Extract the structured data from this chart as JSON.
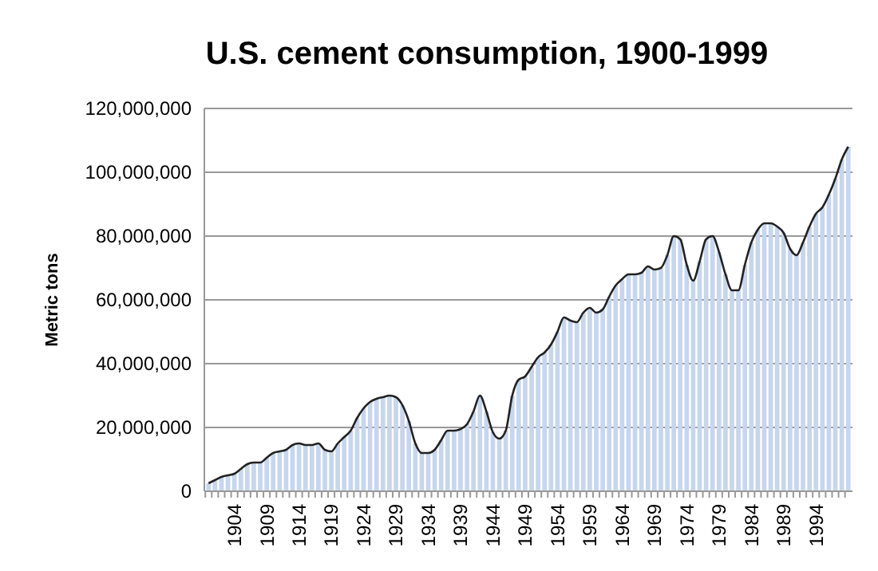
{
  "chart_data": {
    "type": "bar",
    "title": "U.S. cement consumption, 1900-1999",
    "ylabel": "Metric tons",
    "categories": [
      null,
      null,
      null,
      null,
      "1904",
      null,
      null,
      null,
      null,
      "1909",
      null,
      null,
      null,
      null,
      "1914",
      null,
      null,
      null,
      null,
      "1919",
      null,
      null,
      null,
      null,
      "1924",
      null,
      null,
      null,
      null,
      "1929",
      null,
      null,
      null,
      null,
      "1934",
      null,
      null,
      null,
      null,
      "1939",
      null,
      null,
      null,
      null,
      "1944",
      null,
      null,
      null,
      null,
      "1949",
      null,
      null,
      null,
      null,
      "1954",
      null,
      null,
      null,
      null,
      "1959",
      null,
      null,
      null,
      null,
      "1964",
      null,
      null,
      null,
      null,
      "1969",
      null,
      null,
      null,
      null,
      "1974",
      null,
      null,
      null,
      null,
      "1979",
      null,
      null,
      null,
      null,
      "1984",
      null,
      null,
      null,
      null,
      "1989",
      null,
      null,
      null,
      null,
      "1994",
      null,
      null,
      null,
      null,
      null
    ],
    "series": [
      {
        "color": "#c6d6ee",
        "values": [
          2500000,
          3500000,
          4500000,
          5000000,
          5500000,
          7000000,
          8500000,
          9000000,
          9000000,
          10500000,
          12000000,
          12500000,
          13000000,
          14500000,
          15000000,
          14500000,
          14500000,
          15000000,
          13000000,
          12500000,
          15000000,
          17000000,
          19000000,
          23000000,
          26000000,
          28000000,
          29000000,
          29500000,
          30000000,
          29500000,
          27000000,
          22000000,
          15000000,
          12000000,
          12000000,
          13000000,
          16000000,
          19000000,
          19000000,
          19500000,
          21000000,
          25000000,
          30000000,
          25000000,
          18500000,
          16500000,
          19000000,
          30000000,
          35000000,
          36000000,
          39000000,
          42000000,
          43500000,
          46000000,
          50000000,
          54500000,
          53500000,
          53000000,
          56000000,
          57500000,
          56000000,
          57000000,
          61000000,
          64500000,
          66500000,
          68000000,
          68000000,
          68500000,
          70500000,
          69500000,
          70000000,
          74000000,
          80000000,
          79000000,
          71000000,
          66000000,
          72000000,
          79000000,
          80000000,
          75000000,
          68000000,
          63000000,
          63000000,
          71000000,
          78000000,
          82000000,
          84000000,
          84000000,
          83000000,
          81000000,
          76000000,
          74000000,
          78000000,
          83000000,
          87000000,
          89000000,
          93000000,
          98000000,
          104000000,
          108000000
        ]
      },
      {
        "type": "line",
        "color": "#222222",
        "values": [
          2500000,
          3500000,
          4500000,
          5000000,
          5500000,
          7000000,
          8500000,
          9000000,
          9000000,
          10500000,
          12000000,
          12500000,
          13000000,
          14500000,
          15000000,
          14500000,
          14500000,
          15000000,
          13000000,
          12500000,
          15000000,
          17000000,
          19000000,
          23000000,
          26000000,
          28000000,
          29000000,
          29500000,
          30000000,
          29500000,
          27000000,
          22000000,
          15000000,
          12000000,
          12000000,
          13000000,
          16000000,
          19000000,
          19000000,
          19500000,
          21000000,
          25000000,
          30000000,
          25000000,
          18500000,
          16500000,
          19000000,
          30000000,
          35000000,
          36000000,
          39000000,
          42000000,
          43500000,
          46000000,
          50000000,
          54500000,
          53500000,
          53000000,
          56000000,
          57500000,
          56000000,
          57000000,
          61000000,
          64500000,
          66500000,
          68000000,
          68000000,
          68500000,
          70500000,
          69500000,
          70000000,
          74000000,
          80000000,
          79000000,
          71000000,
          66000000,
          72000000,
          79000000,
          80000000,
          75000000,
          68000000,
          63000000,
          63000000,
          71000000,
          78000000,
          82000000,
          84000000,
          84000000,
          83000000,
          81000000,
          76000000,
          74000000,
          78000000,
          83000000,
          87000000,
          89000000,
          93000000,
          98000000,
          104000000,
          108000000
        ]
      }
    ],
    "ylim": [
      0,
      120000000
    ],
    "yticks": [
      {
        "value": 0,
        "label": "0"
      },
      {
        "value": 20000000,
        "label": "20,000,000"
      },
      {
        "value": 40000000,
        "label": "40,000,000"
      },
      {
        "value": 60000000,
        "label": "60,000,000"
      },
      {
        "value": 80000000,
        "label": "80,000,000"
      },
      {
        "value": 100000000,
        "label": "100,000,000"
      },
      {
        "value": 120000000,
        "label": "120,000,000"
      }
    ],
    "grid": "y"
  }
}
